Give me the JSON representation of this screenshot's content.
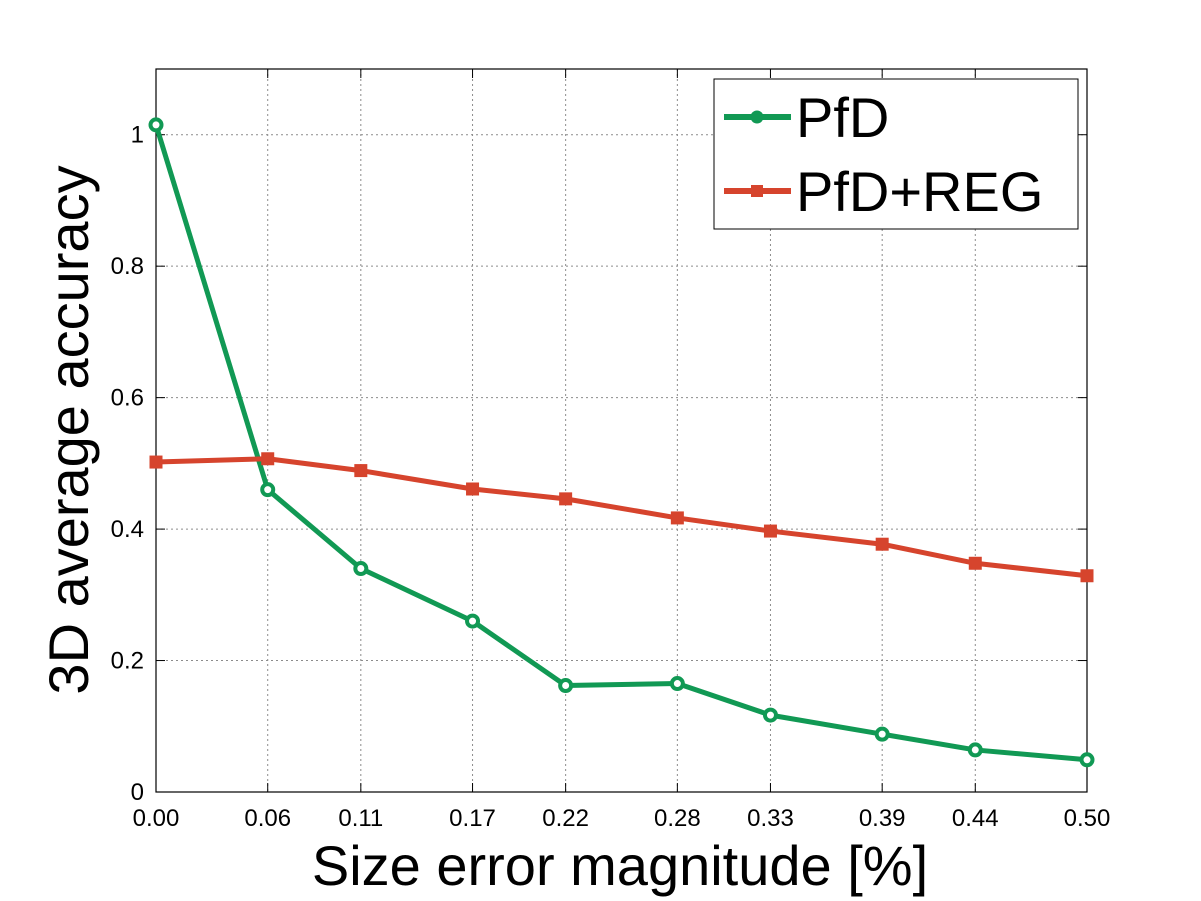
{
  "chart_data": {
    "type": "line",
    "title": "",
    "xlabel": "Size error magnitude [%]",
    "ylabel": "3D average accuracy",
    "x": [
      0.0,
      0.06,
      0.11,
      0.17,
      0.22,
      0.28,
      0.33,
      0.39,
      0.44,
      0.5
    ],
    "x_tick_labels": [
      "0.00",
      "0.06",
      "0.11",
      "0.17",
      "0.22",
      "0.28",
      "0.33",
      "0.39",
      "0.44",
      "0.50"
    ],
    "y_ticks": [
      0,
      0.2,
      0.4,
      0.6,
      0.8,
      1
    ],
    "y_tick_labels": [
      "0",
      "0.2",
      "0.4",
      "0.6",
      "0.8",
      "1"
    ],
    "xlim": [
      0,
      0.5
    ],
    "ylim": [
      0,
      1.1
    ],
    "grid": true,
    "legend_position": "top-right",
    "series": [
      {
        "name": "PfD",
        "color": "#119954",
        "marker": "circle",
        "values": [
          1.015,
          0.46,
          0.34,
          0.26,
          0.162,
          0.165,
          0.117,
          0.088,
          0.064,
          0.049
        ]
      },
      {
        "name": "PfD+REG",
        "color": "#d6442d",
        "marker": "square",
        "values": [
          0.502,
          0.507,
          0.489,
          0.461,
          0.446,
          0.417,
          0.397,
          0.377,
          0.348,
          0.329
        ]
      }
    ]
  }
}
